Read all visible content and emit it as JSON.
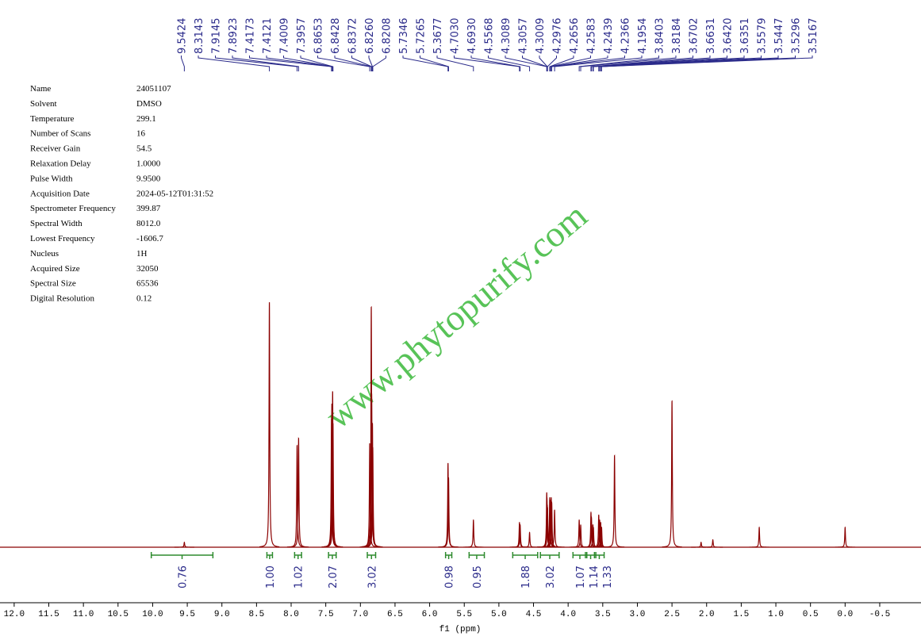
{
  "parameters": [
    [
      "Name",
      "24051107"
    ],
    [
      "Solvent",
      "DMSO"
    ],
    [
      "Temperature",
      "299.1"
    ],
    [
      "Number of Scans",
      "16"
    ],
    [
      "Receiver Gain",
      "54.5"
    ],
    [
      "Relaxation Delay",
      "1.0000"
    ],
    [
      "Pulse Width",
      "9.9500"
    ],
    [
      "Acquisition Date",
      "2024-05-12T01:31:52"
    ],
    [
      "Spectrometer Frequency",
      "399.87"
    ],
    [
      "Spectral Width",
      "8012.0"
    ],
    [
      "Lowest Frequency",
      "-1606.7"
    ],
    [
      "Nucleus",
      "1H"
    ],
    [
      "Acquired Size",
      "32050"
    ],
    [
      "Spectral Size",
      "65536"
    ],
    [
      "Digital Resolution",
      "0.12"
    ]
  ],
  "watermark": "www.phytopurify.com",
  "chart_data": {
    "type": "spectrum",
    "x_label": "f1 (ppm)",
    "xlim": [
      12.09,
      -0.97
    ],
    "ylim": [
      0,
      100
    ],
    "xticks": [
      {
        "value": 12,
        "label": "12.0"
      },
      11.5,
      {
        "value": 11,
        "label": "11.0"
      },
      10.5,
      {
        "value": 10,
        "label": "10.0"
      },
      9.5,
      {
        "value": 9,
        "label": "9.0"
      },
      8.5,
      {
        "value": 8,
        "label": "8.0"
      },
      7.5,
      {
        "value": 7,
        "label": "7.0"
      },
      6.5,
      {
        "value": 6,
        "label": "6.0"
      },
      5.5,
      {
        "value": 5,
        "label": "5.0"
      },
      4.5,
      {
        "value": 4,
        "label": "4.0"
      },
      3.5,
      {
        "value": 3,
        "label": "3.0"
      },
      2.5,
      {
        "value": 2,
        "label": "2.0"
      },
      1.5,
      {
        "value": 1,
        "label": "1.0"
      },
      0.5,
      {
        "value": 0,
        "label": "0.0"
      },
      -0.5
    ],
    "series": [
      {
        "color": "#8b0000",
        "x": [
          9.5424,
          8.3143,
          7.9145,
          7.8923,
          7.4173,
          7.4121,
          7.4009,
          7.3957,
          6.8653,
          6.8428,
          6.8372,
          {
            "value": 6.826,
            "label": "6.8260"
          },
          6.8208,
          5.7346,
          5.7265,
          5.3677,
          {
            "value": 4.703,
            "label": "4.7030"
          },
          {
            "value": 4.693,
            "label": "4.6930"
          },
          4.5568,
          4.3089,
          4.3057,
          4.3009,
          4.2976,
          4.2656,
          4.2583,
          4.2439,
          4.2366,
          4.1954,
          3.8403,
          3.8184,
          3.6702,
          3.6631,
          {
            "value": 3.642,
            "label": "3.6420"
          },
          3.6351,
          3.5579,
          3.5447,
          3.5296,
          3.5167
        ],
        "values": [
          2,
          99,
          41,
          44,
          52,
          58,
          63,
          50,
          42,
          97,
          62,
          50,
          40,
          34,
          28,
          11,
          10,
          9,
          6,
          22,
          20,
          17,
          16,
          20,
          19,
          20,
          18,
          15,
          11,
          9,
          14,
          12,
          9,
          8,
          13,
          11,
          10,
          8
        ]
      },
      {
        "color": "#8b0000",
        "x": [
          3.33,
          2.5,
          2.08,
          1.91,
          1.24,
          0.0
        ],
        "values": [
          37,
          59,
          2,
          3,
          8,
          8
        ]
      }
    ],
    "integrals": {
      "color": "#2e8b2e",
      "from": [
        10.02,
        8.35,
        7.95,
        7.46,
        6.9,
        5.77,
        5.43,
        4.8,
        4.4,
        3.93,
        3.75,
        3.62
      ],
      "to": [
        9.13,
        8.27,
        7.85,
        7.35,
        6.78,
        5.68,
        5.21,
        4.44,
        4.13,
        3.73,
        3.6,
        3.48
      ],
      "values": [
        0.76,
        1,
        1.02,
        2.07,
        3.02,
        0.98,
        0.95,
        1.88,
        3.02,
        1.07,
        1.14,
        1.33
      ],
      "value_labels": [
        "0.76",
        "1.00",
        "1.02",
        "2.07",
        "3.02",
        "0.98",
        "0.95",
        "1.88",
        "3.02",
        "1.07",
        "1.14",
        "1.33"
      ]
    }
  }
}
